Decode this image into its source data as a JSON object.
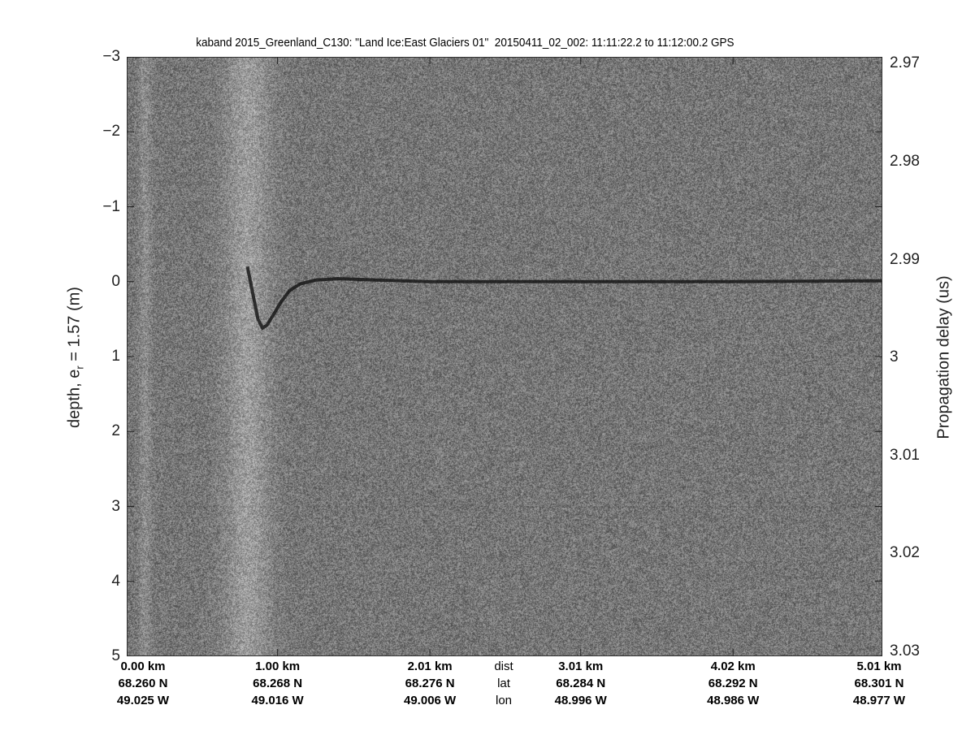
{
  "chart_data": {
    "type": "heatmap",
    "title": "kaband 2015_Greenland_C130: \"Land Ice:East Glaciers 01\"  20150411_02_002: 11:11:22.2 to 11:12:00.2 GPS",
    "ylabel_left": "depth, e",
    "ylabel_left_sub": "r",
    "ylabel_left_suffix": " = 1.57 (m)",
    "ylabel_right": "Propagation delay (us)",
    "ylim_left": [
      -3,
      5
    ],
    "yticks_left": [
      "-3",
      "-2",
      "-1",
      "0",
      "1",
      "2",
      "3",
      "4",
      "5"
    ],
    "ylim_right": [
      2.9693,
      3.0305
    ],
    "yticks_right": [
      "2.97",
      "2.98",
      "2.99",
      "3",
      "3.01",
      "3.02",
      "3.03"
    ],
    "xlim_km": [
      0,
      5.01
    ],
    "colormap": "gray",
    "x_label_rows": {
      "dist": {
        "label": "dist",
        "values": [
          "0.00 km",
          "1.00 km",
          "2.01 km",
          "3.01 km",
          "4.02 km",
          "5.01 km"
        ]
      },
      "lat": {
        "label": "lat",
        "values": [
          "68.260 N",
          "68.268 N",
          "68.276 N",
          "68.284 N",
          "68.292 N",
          "68.301 N"
        ]
      },
      "lon": {
        "label": "lon",
        "values": [
          "49.025 W",
          "49.016 W",
          "49.006 W",
          "48.996 W",
          "48.986 W",
          "48.977 W"
        ]
      }
    },
    "x_tick_km": [
      0,
      1.0,
      2.01,
      3.01,
      4.02,
      5.01
    ],
    "surface_layer": {
      "x_km": [
        0.8,
        0.84,
        0.87,
        0.9,
        0.93,
        0.97,
        1.02,
        1.08,
        1.15,
        1.25,
        1.4,
        2.0,
        3.0,
        4.0,
        5.01
      ],
      "depth_m": [
        -0.2,
        0.2,
        0.5,
        0.62,
        0.58,
        0.45,
        0.28,
        0.12,
        0.03,
        -0.02,
        -0.04,
        0.0,
        0.0,
        0.0,
        -0.01
      ]
    }
  }
}
